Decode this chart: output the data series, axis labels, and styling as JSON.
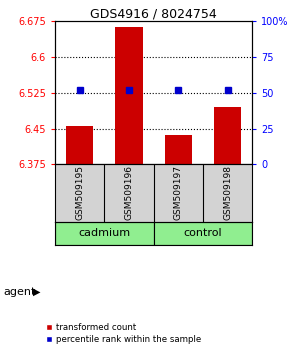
{
  "title": "GDS4916 / 8024754",
  "samples": [
    "GSM509195",
    "GSM509196",
    "GSM509197",
    "GSM509198"
  ],
  "bar_values": [
    6.455,
    6.663,
    6.437,
    6.495
  ],
  "percentile_values": [
    6.53,
    6.53,
    6.53,
    6.53
  ],
  "bar_color": "#cc0000",
  "percentile_color": "#0000cc",
  "ylim_left": [
    6.375,
    6.675
  ],
  "ylim_right": [
    0,
    100
  ],
  "yticks_left": [
    6.375,
    6.45,
    6.525,
    6.6,
    6.675
  ],
  "yticks_right": [
    0,
    25,
    50,
    75,
    100
  ],
  "ytick_labels_right": [
    "0",
    "25",
    "50",
    "75",
    "100%"
  ],
  "dotted_lines": [
    6.6,
    6.525,
    6.45
  ],
  "groups": [
    {
      "label": "cadmium",
      "indices": [
        0,
        1
      ],
      "color": "#90ee90"
    },
    {
      "label": "control",
      "indices": [
        2,
        3
      ],
      "color": "#90ee90"
    }
  ],
  "agent_label": "agent",
  "legend_items": [
    {
      "color": "#cc0000",
      "label": "transformed count"
    },
    {
      "color": "#0000cc",
      "label": "percentile rank within the sample"
    }
  ],
  "background_color": "#ffffff",
  "plot_bg_color": "#ffffff",
  "bar_width": 0.55,
  "base_value": 6.375
}
